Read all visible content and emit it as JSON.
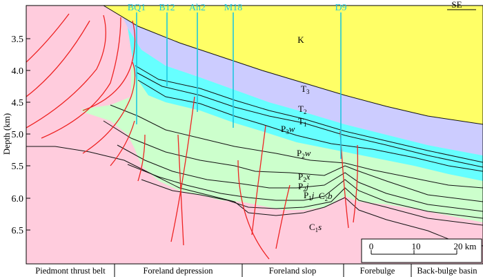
{
  "y_axis": {
    "label": "Depth (km)",
    "ticks": [
      "3.5",
      "4.0",
      "4.5",
      "5.0",
      "5.5",
      "6.0",
      "6.5"
    ]
  },
  "direction": "SE",
  "wells": [
    "BQ1",
    "B12",
    "Ah2",
    "M18",
    "D9"
  ],
  "units": {
    "K": "K",
    "T3": "T",
    "T3_sub": "3",
    "T2": "T",
    "T2_sub": "2",
    "T1": "T",
    "T1_sub": "1",
    "P3w": "P",
    "P3w_sub": "3",
    "P3w_suf": "w",
    "P2w": "P",
    "P2w_sub": "2",
    "P2w_suf": "w",
    "P2x": "P",
    "P2x_sub": "2",
    "P2x_suf": "x",
    "P2j": "P",
    "P2j_sub": "2",
    "P2j_suf": "j",
    "P1j": "P",
    "P1j_sub": "1",
    "P1j_suf": "j",
    "C2b": "C",
    "C2b_sub": "2",
    "C2b_suf": "b",
    "C1s": "C",
    "C1s_sub": "1",
    "C1s_suf": "s"
  },
  "scale_bar": {
    "ticks": [
      "0",
      "10",
      "20"
    ],
    "unit": "km"
  },
  "zones": [
    "Piedmont thrust belt",
    "Foreland depression",
    "Foreland slop",
    "Forebulge",
    "Back-bulge basin"
  ],
  "colors": {
    "K": "#ffff66",
    "T": "#ccccff",
    "T1": "#66ffff",
    "P": "#ccffcc",
    "C": "#ffccdd",
    "fault": "#ee2222",
    "well": "#1ec7df"
  }
}
